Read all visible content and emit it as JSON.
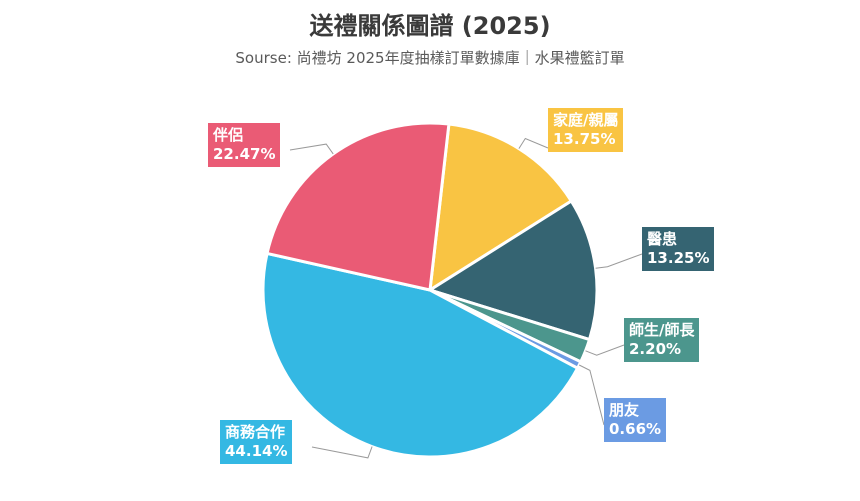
{
  "chart_data": {
    "type": "pie",
    "title": "送禮關係圖譜 (2025)",
    "subtitle": "Sourse: 尚禮坊 2025年度抽樣訂單數據庫｜水果禮籃訂單",
    "slices": [
      {
        "label": "家庭/親屬",
        "value": 13.75,
        "value_label": "13.75%",
        "color": "#F9C443"
      },
      {
        "label": "醫患",
        "value": 13.25,
        "value_label": "13.25%",
        "color": "#356472"
      },
      {
        "label": "師生/師長",
        "value": 2.2,
        "value_label": "2.20%",
        "color": "#4C968D"
      },
      {
        "label": "朋友",
        "value": 0.66,
        "value_label": "0.66%",
        "color": "#6B9BE3"
      },
      {
        "label": "商務合作",
        "value": 44.14,
        "value_label": "44.14%",
        "color": "#34B8E3"
      },
      {
        "label": "伴侶",
        "value": 22.47,
        "value_label": "22.47%",
        "color": "#EA5B75"
      }
    ]
  }
}
